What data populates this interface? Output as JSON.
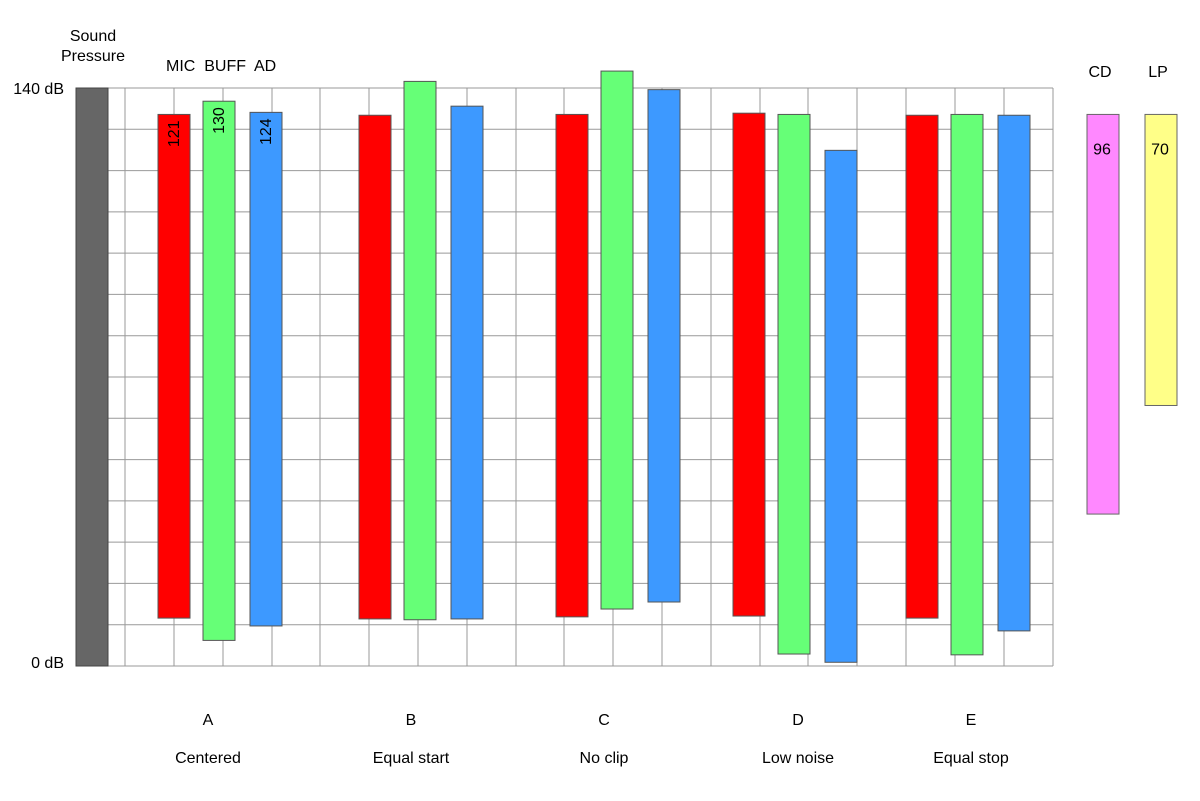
{
  "chart_data": {
    "type": "bar",
    "description_labels": {
      "y_title_line1": "Sound",
      "y_title_line2": "Pressure",
      "y_top_label": "140 dB",
      "y_bottom_label": "0 dB",
      "series_header": "MIC  BUFF  AD"
    },
    "ylim": [
      0,
      140
    ],
    "grid": true,
    "series": [
      {
        "name": "MIC",
        "color": "#ff0000"
      },
      {
        "name": "BUFF",
        "color": "#66ff77"
      },
      {
        "name": "AD",
        "color": "#3d99ff"
      }
    ],
    "sound_pressure_bar": {
      "low": 0,
      "high": 140,
      "color": "#666666"
    },
    "groups": [
      {
        "letter": "A",
        "caption": "Centered",
        "bars": [
          {
            "series": "MIC",
            "low": 11.6,
            "high": 133.6,
            "label": "121"
          },
          {
            "series": "BUFF",
            "low": 6.2,
            "high": 136.8,
            "label": "130"
          },
          {
            "series": "AD",
            "low": 9.7,
            "high": 134.1,
            "label": "124"
          }
        ]
      },
      {
        "letter": "B",
        "caption": "Equal start",
        "bars": [
          {
            "series": "MIC",
            "low": 11.4,
            "high": 133.4,
            "label": ""
          },
          {
            "series": "BUFF",
            "low": 11.2,
            "high": 141.6,
            "label": ""
          },
          {
            "series": "AD",
            "low": 11.4,
            "high": 135.6,
            "label": ""
          }
        ]
      },
      {
        "letter": "C",
        "caption": "No clip",
        "bars": [
          {
            "series": "MIC",
            "low": 11.9,
            "high": 133.6,
            "label": ""
          },
          {
            "series": "BUFF",
            "low": 13.8,
            "high": 144.1,
            "label": ""
          },
          {
            "series": "AD",
            "low": 15.5,
            "high": 139.6,
            "label": ""
          }
        ]
      },
      {
        "letter": "D",
        "caption": "Low noise",
        "bars": [
          {
            "series": "MIC",
            "low": 12.1,
            "high": 133.9,
            "label": ""
          },
          {
            "series": "BUFF",
            "low": 2.9,
            "high": 133.6,
            "label": ""
          },
          {
            "series": "AD",
            "low": 0.9,
            "high": 124.9,
            "label": ""
          }
        ]
      },
      {
        "letter": "E",
        "caption": "Equal stop",
        "bars": [
          {
            "series": "MIC",
            "low": 11.6,
            "high": 133.4,
            "label": ""
          },
          {
            "series": "BUFF",
            "low": 2.7,
            "high": 133.6,
            "label": ""
          },
          {
            "series": "AD",
            "low": 8.5,
            "high": 133.4,
            "label": ""
          }
        ]
      }
    ],
    "formats": [
      {
        "name": "CD",
        "low": 36.8,
        "high": 133.6,
        "label": "96",
        "color": "#ff88ff"
      },
      {
        "name": "LP",
        "low": 63.1,
        "high": 133.6,
        "label": "70",
        "color": "#ffff88"
      }
    ]
  }
}
